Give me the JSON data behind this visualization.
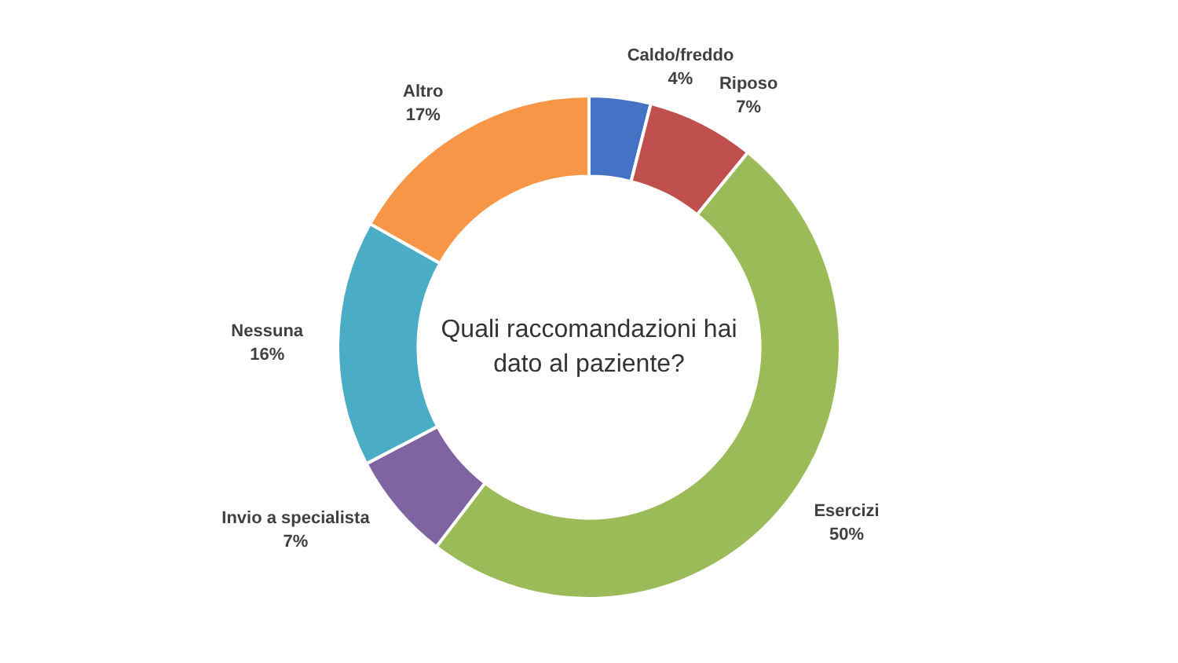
{
  "chart_data": {
    "type": "donut",
    "title": "Quali raccomandazioni hai dato al paziente?",
    "categories": [
      "Caldo/freddo",
      "Riposo",
      "Esercizi",
      "Invio a specialista",
      "Nessuna",
      "Altro"
    ],
    "values": [
      4,
      7,
      50,
      7,
      16,
      17
    ],
    "colors": [
      "#4472c4",
      "#c0504d",
      "#9bbb59",
      "#8064a2",
      "#4bacc6",
      "#f79646"
    ],
    "value_labels": [
      "4%",
      "7%",
      "50%",
      "7%",
      "16%",
      "17%"
    ],
    "legend": false
  }
}
